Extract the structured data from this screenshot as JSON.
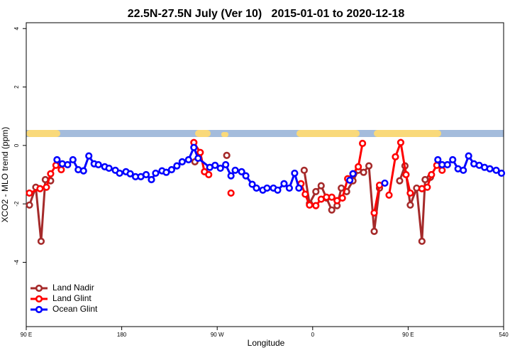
{
  "chart_data": {
    "type": "line",
    "title": "22.5N-27.5N July (Ver 10)   2015-01-01 to 2020-12-18",
    "x_label": "Longitude",
    "y_label": "XCO2 - MLO trend (ppm)",
    "xlim": [
      90,
      540
    ],
    "ylim": [
      -6.2,
      4.2
    ],
    "xticks": [
      {
        "value": 90,
        "label": "90 E"
      },
      180,
      {
        "value": 270,
        "label": "90 W"
      },
      {
        "value": 360,
        "label": "0"
      },
      {
        "value": 450,
        "label": "90 E"
      },
      540
    ],
    "yticks": [
      4,
      2,
      0,
      -2,
      -4
    ],
    "legend": "bottom-left",
    "series": [
      {
        "name": "Land Nadir",
        "color": "#a52a2a",
        "x": [
          93,
          99,
          104,
          108,
          113,
          null,
          249,
          null,
          279,
          null,
          352,
          357,
          363,
          368,
          373,
          378,
          383,
          387,
          392,
          398,
          403,
          408,
          413,
          418,
          423,
          null,
          442,
          447,
          452,
          458,
          463,
          466,
          471
        ],
        "values": [
          -2.04,
          -1.43,
          -3.28,
          -1.17,
          -1.21,
          null,
          -0.56,
          null,
          -0.34,
          null,
          -0.85,
          -1.99,
          -1.58,
          -1.38,
          -1.8,
          -2.21,
          -2.06,
          -1.46,
          -1.58,
          -1.21,
          -0.85,
          -0.92,
          -0.7,
          -2.94,
          -1.46,
          null,
          -1.21,
          -0.7,
          -2.04,
          -1.46,
          -3.28,
          -1.17,
          -1.09
        ]
      },
      {
        "name": "Land Glint",
        "color": "#ff0000",
        "x": [
          93,
          103,
          109,
          113,
          118,
          123,
          null,
          248,
          254,
          258,
          262,
          null,
          283,
          null,
          349,
          353,
          357,
          363,
          368,
          373,
          378,
          383,
          388,
          393,
          398,
          403,
          407,
          null,
          418,
          423,
          null,
          432,
          438,
          443,
          448,
          452,
          null,
          463,
          468,
          472,
          477,
          482
        ],
        "values": [
          -1.63,
          -1.48,
          -1.43,
          -0.97,
          -0.68,
          -0.83,
          null,
          0.1,
          -0.24,
          -0.9,
          -1.0,
          null,
          -1.63,
          null,
          -1.31,
          -1.67,
          -2.04,
          -2.06,
          -1.84,
          -1.77,
          -1.77,
          -1.89,
          -1.8,
          -1.14,
          -0.97,
          -0.73,
          0.07,
          null,
          -2.31,
          -1.36,
          null,
          -1.7,
          -0.39,
          0.1,
          -1.0,
          -1.63,
          null,
          -1.48,
          -1.43,
          -1.0,
          -0.68,
          -0.85
        ]
      },
      {
        "name": "Ocean Glint",
        "color": "#0000ff",
        "x": [
          119,
          124,
          129,
          134,
          139,
          144,
          149,
          154,
          158,
          164,
          168,
          174,
          178,
          184,
          188,
          193,
          198,
          203,
          208,
          212,
          218,
          222,
          227,
          232,
          237,
          243,
          248,
          252,
          263,
          268,
          273,
          278,
          283,
          287,
          293,
          297,
          303,
          307,
          313,
          317,
          323,
          327,
          333,
          338,
          343,
          347,
          null,
          395,
          398,
          null,
          428,
          null,
          478,
          482,
          487,
          492,
          497,
          502,
          507,
          512,
          517,
          522,
          527,
          533,
          538
        ],
        "values": [
          -0.49,
          -0.63,
          -0.66,
          -0.49,
          -0.83,
          -0.87,
          -0.36,
          -0.63,
          -0.66,
          -0.73,
          -0.78,
          -0.85,
          -0.95,
          -0.9,
          -0.97,
          -1.07,
          -1.07,
          -1.0,
          -1.17,
          -0.95,
          -0.87,
          -0.92,
          -0.83,
          -0.7,
          -0.56,
          -0.49,
          -0.07,
          -0.44,
          -0.75,
          -0.68,
          -0.78,
          -0.66,
          -1.04,
          -0.85,
          -0.9,
          -1.04,
          -1.33,
          -1.46,
          -1.53,
          -1.46,
          -1.46,
          -1.53,
          -1.31,
          -1.46,
          -0.95,
          -1.46,
          null,
          -1.19,
          -0.97,
          null,
          -1.29,
          null,
          -0.49,
          -0.66,
          -0.66,
          -0.49,
          -0.8,
          -0.85,
          -0.36,
          -0.63,
          -0.68,
          -0.75,
          -0.8,
          -0.85,
          -0.95
        ]
      }
    ]
  }
}
